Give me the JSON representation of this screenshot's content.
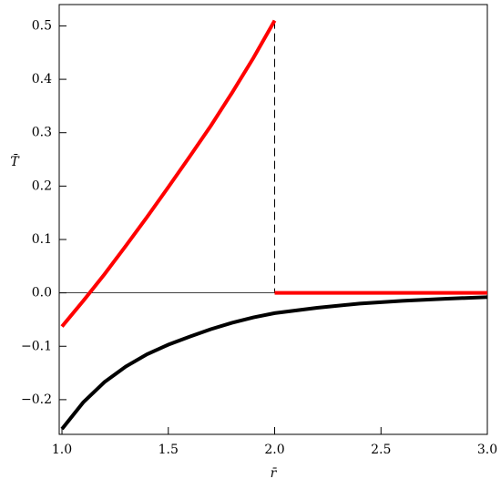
{
  "chart_data": {
    "type": "line",
    "xlabel": "r̄",
    "ylabel": "T̄",
    "xlim": [
      0.987,
      3.0
    ],
    "ylim": [
      -0.265,
      0.54
    ],
    "xticks": [
      {
        "value": 1,
        "label": "1.0"
      },
      {
        "value": 1.5,
        "label": "1.5"
      },
      {
        "value": 2,
        "label": "2.0"
      },
      {
        "value": 2.5,
        "label": "2.5"
      },
      {
        "value": 3,
        "label": "3.0"
      }
    ],
    "yticks": [
      {
        "value": -0.2,
        "label": "−0.2"
      },
      {
        "value": -0.1,
        "label": "−0.1"
      },
      {
        "value": 0,
        "label": "0.0"
      },
      {
        "value": 0.1,
        "label": "0.1"
      },
      {
        "value": 0.2,
        "label": "0.2"
      },
      {
        "value": 0.3,
        "label": "0.3"
      },
      {
        "value": 0.4,
        "label": "0.4"
      },
      {
        "value": 0.5,
        "label": "0.5"
      }
    ],
    "series": [
      {
        "color": "#ff0000",
        "x": [
          1.0,
          1.1,
          1.2,
          1.3,
          1.4,
          1.5,
          1.6,
          1.7,
          1.8,
          1.9,
          2.0,
          2.0,
          2.0,
          3.0
        ],
        "values": [
          -0.063,
          -0.015,
          0.035,
          0.088,
          0.142,
          0.198,
          0.255,
          0.313,
          0.375,
          0.44,
          0.51,
          null,
          0,
          0
        ]
      },
      {
        "color": "#000000",
        "x": [
          1.0,
          1.1,
          1.2,
          1.3,
          1.4,
          1.5,
          1.6,
          1.7,
          1.8,
          1.9,
          2.0,
          2.2,
          2.4,
          2.6,
          2.8,
          3.0
        ],
        "values": [
          -0.255,
          -0.205,
          -0.167,
          -0.138,
          -0.115,
          -0.097,
          -0.082,
          -0.068,
          -0.056,
          -0.046,
          -0.038,
          -0.028,
          -0.02,
          -0.015,
          -0.011,
          -0.008
        ]
      }
    ]
  }
}
